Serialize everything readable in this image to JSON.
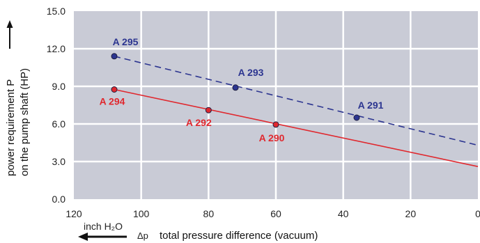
{
  "chart_data": {
    "type": "line",
    "xlim": [
      120,
      0
    ],
    "ylim": [
      0,
      15
    ],
    "x_ticks": [
      "120",
      "100",
      "80",
      "60",
      "40",
      "20",
      "0"
    ],
    "y_ticks": [
      "0.0",
      "3.0",
      "6.0",
      "9.0",
      "12.0",
      "15.0"
    ],
    "ylabel_line1": "power requirement P",
    "ylabel_line2": "on the pump shaft (HP)",
    "xlabel": "total pressure difference (vacuum)",
    "xlabel_symbol": "Δp",
    "x_unit": "inch H₂O",
    "grid": true,
    "background_color": "#c9cbd6",
    "series": [
      {
        "color": "#2c3590",
        "dash": "dashed",
        "line": {
          "x": [
            108,
            0
          ],
          "y": [
            11.4,
            4.3
          ]
        },
        "points": [
          {
            "label": "A 295",
            "x": 108,
            "y": 11.4
          },
          {
            "label": "A 293",
            "x": 72,
            "y": 8.9
          },
          {
            "label": "A 291",
            "x": 36,
            "y": 6.5
          }
        ]
      },
      {
        "color": "#e0282e",
        "dash": "solid",
        "line": {
          "x": [
            108,
            0
          ],
          "y": [
            8.75,
            2.6
          ]
        },
        "points": [
          {
            "label": "A 294",
            "x": 108,
            "y": 8.75
          },
          {
            "label": "A 292",
            "x": 80,
            "y": 7.1
          },
          {
            "label": "A 290",
            "x": 60,
            "y": 5.95
          }
        ]
      }
    ]
  }
}
